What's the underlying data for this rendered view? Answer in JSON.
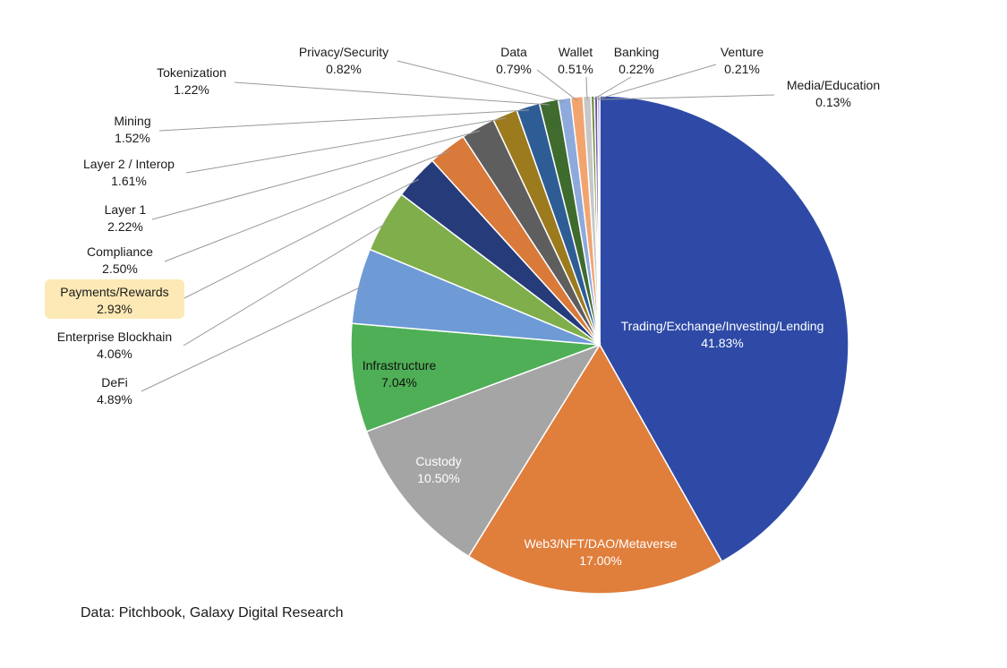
{
  "chart_data": {
    "type": "pie",
    "title": "",
    "start": "12 o'clock, clockwise",
    "slices": [
      {
        "label": "Trading/Exchange/Investing/Lending",
        "value": 41.83,
        "display": "41.83%",
        "color": "#2E4AA6",
        "label_placement": "inside",
        "text_color": "#ffffff"
      },
      {
        "label": "Web3/NFT/DAO/Metaverse",
        "value": 17.0,
        "display": "17.00%",
        "color": "#E07E3C",
        "label_placement": "inside",
        "text_color": "#ffffff"
      },
      {
        "label": "Custody",
        "value": 10.5,
        "display": "10.50%",
        "color": "#A5A5A5",
        "label_placement": "inside",
        "text_color": "#ffffff"
      },
      {
        "label": "Infrastructure",
        "value": 7.04,
        "display": "7.04%",
        "color": "#4FAF56",
        "label_placement": "inside",
        "text_color": "#111111"
      },
      {
        "label": "DeFi",
        "value": 4.89,
        "display": "4.89%",
        "color": "#6E9BD6",
        "label_placement": "outside"
      },
      {
        "label": "Enterprise Blockhain",
        "value": 4.06,
        "display": "4.06%",
        "color": "#7FAE4A",
        "label_placement": "outside"
      },
      {
        "label": "Payments/Rewards",
        "value": 2.93,
        "display": "2.93%",
        "color": "#263B7A",
        "label_placement": "outside",
        "highlight": "#FCE9B5"
      },
      {
        "label": "Compliance",
        "value": 2.5,
        "display": "2.50%",
        "color": "#D9793A",
        "label_placement": "outside"
      },
      {
        "label": "Layer 1",
        "value": 2.22,
        "display": "2.22%",
        "color": "#5E5E5E",
        "label_placement": "outside"
      },
      {
        "label": "Layer 2 / Interop",
        "value": 1.61,
        "display": "1.61%",
        "color": "#9C7A1E",
        "label_placement": "outside"
      },
      {
        "label": "Mining",
        "value": 1.52,
        "display": "1.52%",
        "color": "#2E5D96",
        "label_placement": "outside"
      },
      {
        "label": "Tokenization",
        "value": 1.22,
        "display": "1.22%",
        "color": "#3F6B2E",
        "label_placement": "outside"
      },
      {
        "label": "Privacy/Security",
        "value": 0.82,
        "display": "0.82%",
        "color": "#8EA9DC",
        "label_placement": "outside"
      },
      {
        "label": "Data",
        "value": 0.79,
        "display": "0.79%",
        "color": "#F2A46F",
        "label_placement": "outside"
      },
      {
        "label": "Wallet",
        "value": 0.51,
        "display": "0.51%",
        "color": "#C7C7C7",
        "label_placement": "outside"
      },
      {
        "label": "Banking",
        "value": 0.22,
        "display": "0.22%",
        "color": "#6A8C3F",
        "label_placement": "outside"
      },
      {
        "label": "Venture",
        "value": 0.21,
        "display": "0.21%",
        "color": "#7F4EA3",
        "label_placement": "outside"
      },
      {
        "label": "Media/Education",
        "value": 0.13,
        "display": "0.13%",
        "color": "#3C6BC9",
        "label_placement": "outside"
      }
    ],
    "legend": "none",
    "leader_line_color": "#9a9a9a"
  },
  "source_note": "Data: Pitchbook, Galaxy Digital Research"
}
